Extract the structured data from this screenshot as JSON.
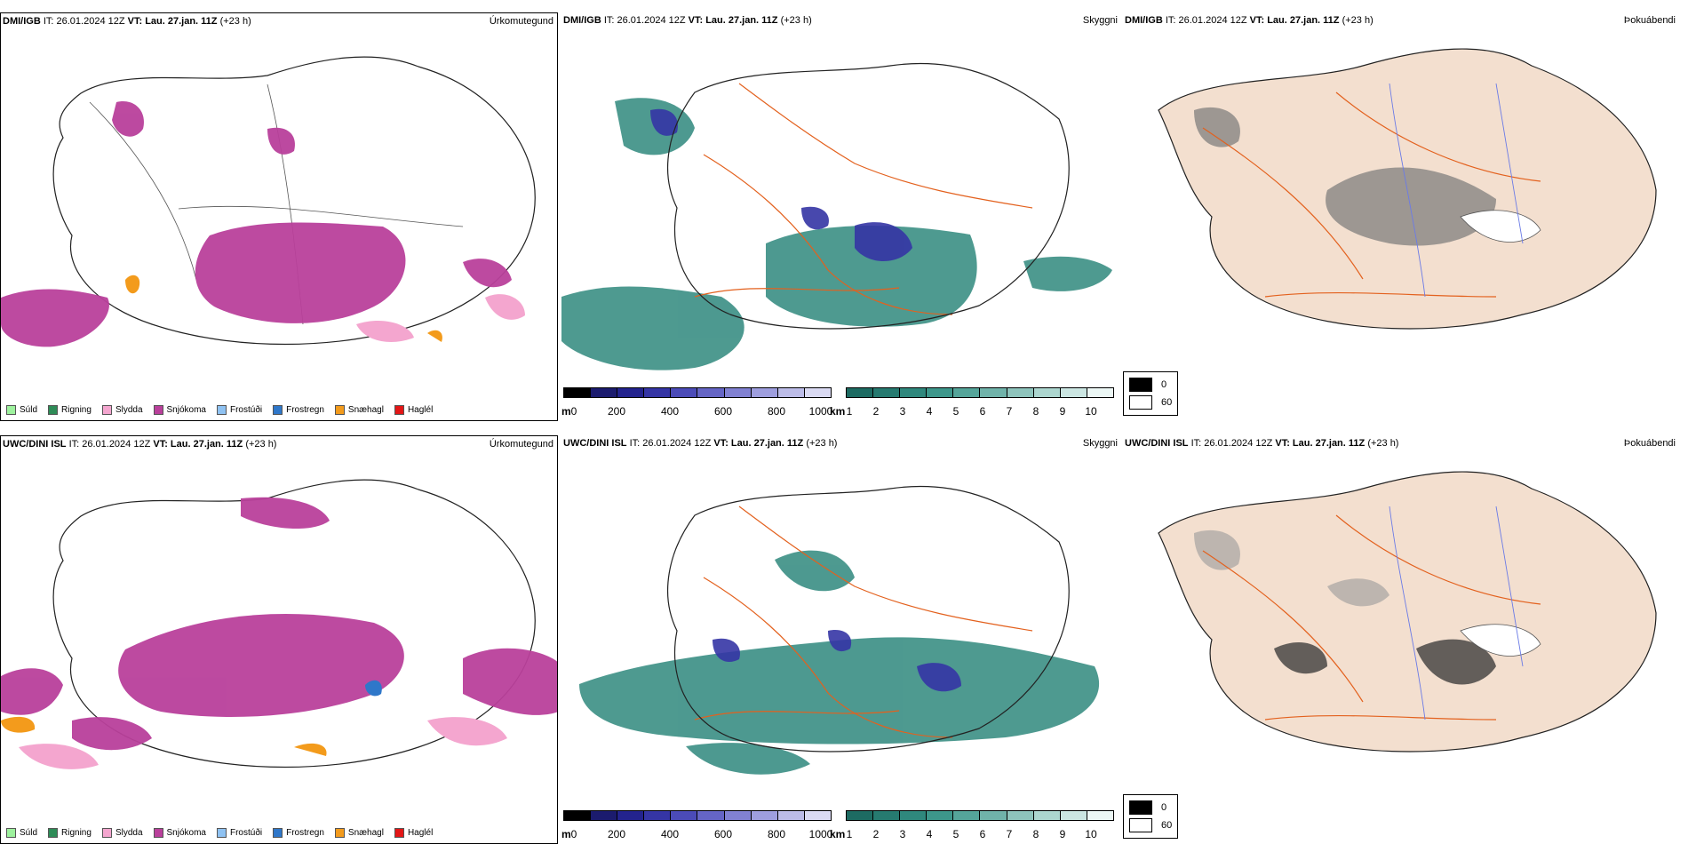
{
  "rows": [
    {
      "model": "DMI/IGB",
      "it_label": "IT: 26.01.2024 12Z",
      "vt_prefix": "VT:",
      "vt_value": "Lau. 27.jan. 11Z",
      "lead": "(+23 h)"
    },
    {
      "model": "UWC/DINI ISL",
      "it_label": "IT: 26.01.2024 12Z",
      "vt_prefix": "VT:",
      "vt_value": "Lau. 27.jan. 11Z",
      "lead": "(+23 h)"
    }
  ],
  "titles": {
    "precip_type": "Úrkomutegund",
    "visibility": "Skyggni",
    "fog": "Þokuábendi"
  },
  "precip_legend": [
    {
      "label": "Súld",
      "color": "#9ef29e"
    },
    {
      "label": "Rigning",
      "color": "#2e8b57"
    },
    {
      "label": "Slydda",
      "color": "#f4a6cf"
    },
    {
      "label": "Snjókoma",
      "color": "#b9409b"
    },
    {
      "label": "Frostúði",
      "color": "#8fc2f2"
    },
    {
      "label": "Frostregn",
      "color": "#2f77c9"
    },
    {
      "label": "Snæhagl",
      "color": "#f39b1c"
    },
    {
      "label": "Haglél",
      "color": "#e31616"
    }
  ],
  "visibility_scale": {
    "m_unit": "m",
    "m_ticks": [
      "0",
      "200",
      "400",
      "600",
      "800",
      "1000"
    ],
    "m_colors": [
      "#000000",
      "#1b1b6e",
      "#23238e",
      "#3535a5",
      "#4b4bb8",
      "#6565c5",
      "#8181d2",
      "#9e9ede",
      "#bcbce8",
      "#dadaf3"
    ],
    "km_unit": "km",
    "km_ticks": [
      "1",
      "2",
      "3",
      "4",
      "5",
      "6",
      "7",
      "8",
      "9",
      "10"
    ],
    "km_colors": [
      "#1d6b62",
      "#267a70",
      "#2f887d",
      "#3d978b",
      "#55a59a",
      "#70b3aa",
      "#8ec4bc",
      "#acd6cf",
      "#cbe6e2",
      "#ecf7f5"
    ]
  },
  "fog_legend": [
    {
      "label": "0",
      "color": "#000000"
    },
    {
      "label": "60",
      "color": "#ffffff"
    }
  ],
  "colors": {
    "snow": "#b9409b",
    "sleet": "#f4a6cf",
    "hail": "#f39b1c",
    "vis_teal": "#2f887d",
    "vis_blue": "#3535a5",
    "land": "#f3dfcf",
    "roads": "#e3611e",
    "rivers": "#6b7be6"
  }
}
